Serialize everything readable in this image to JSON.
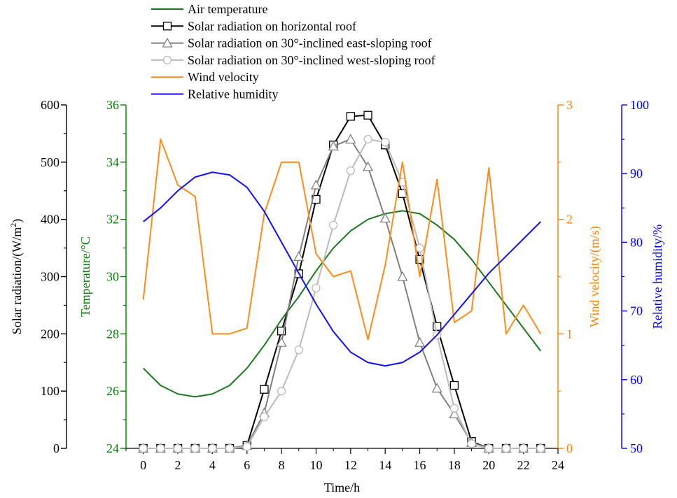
{
  "chart_data": {
    "type": "line",
    "x": [
      0,
      1,
      2,
      3,
      4,
      5,
      6,
      7,
      8,
      9,
      10,
      11,
      12,
      13,
      14,
      15,
      16,
      17,
      18,
      19,
      20,
      21,
      22,
      23
    ],
    "xlabel": "Time/h",
    "xlim": [
      -1,
      24
    ],
    "xticks": [
      0,
      2,
      4,
      6,
      8,
      10,
      12,
      14,
      16,
      18,
      20,
      22,
      24
    ],
    "axes": {
      "solar": {
        "label": "Solar radiation/(W/m",
        "label_sup": "2",
        "label_end": ")",
        "ylim": [
          0,
          600
        ],
        "ticks": [
          0,
          100,
          200,
          300,
          400,
          500,
          600
        ],
        "color": "#000000"
      },
      "temperature": {
        "label": "Temperature/°C",
        "ylim": [
          24,
          36
        ],
        "ticks": [
          24,
          26,
          28,
          30,
          32,
          34,
          36
        ],
        "color": "#008000"
      },
      "wind": {
        "label": "Wind velocity/(m/s)",
        "ylim": [
          0,
          3
        ],
        "ticks": [
          0,
          1,
          2,
          3
        ],
        "color": "#ff8000"
      },
      "humidity": {
        "label": "Relative humidity/%",
        "ylim": [
          50,
          100
        ],
        "ticks": [
          50,
          60,
          70,
          80,
          90,
          100
        ],
        "color": "#0000ff"
      }
    },
    "series": [
      {
        "name": "Air temperature",
        "axis": "temperature",
        "color": "#1a7a1a",
        "marker": "none",
        "values": [
          26.8,
          26.2,
          25.9,
          25.8,
          25.9,
          26.2,
          26.8,
          27.6,
          28.5,
          29.3,
          30.2,
          31.0,
          31.6,
          32.0,
          32.2,
          32.3,
          32.2,
          31.8,
          31.3,
          30.6,
          29.8,
          29.0,
          28.2,
          27.4
        ]
      },
      {
        "name": "Solar radiation on horizontal roof",
        "axis": "solar",
        "color": "#000000",
        "marker": "square",
        "values": [
          0,
          0,
          0,
          0,
          0,
          0,
          5,
          103,
          205,
          305,
          435,
          530,
          580,
          582,
          530,
          445,
          330,
          213,
          110,
          12,
          0,
          0,
          0,
          0
        ]
      },
      {
        "name": "Solar radiation on 30°-inclined east-sloping roof",
        "axis": "solar",
        "color": "#808080",
        "marker": "triangle",
        "values": [
          0,
          0,
          0,
          0,
          0,
          0,
          5,
          62,
          185,
          335,
          460,
          528,
          540,
          492,
          402,
          300,
          185,
          105,
          60,
          10,
          0,
          0,
          0,
          0
        ]
      },
      {
        "name": "Solar radiation on 30°-inclined west-sloping roof",
        "axis": "solar",
        "color": "#bbbbbb",
        "marker": "circle",
        "values": [
          0,
          0,
          0,
          0,
          0,
          0,
          3,
          55,
          100,
          172,
          280,
          390,
          485,
          540,
          535,
          465,
          350,
          198,
          70,
          8,
          0,
          0,
          0,
          0
        ]
      },
      {
        "name": "Wind velocity",
        "axis": "wind",
        "color": "#ff8c1a",
        "marker": "none",
        "values": [
          1.3,
          2.7,
          2.3,
          2.2,
          1.0,
          1.0,
          1.05,
          2.05,
          2.5,
          2.5,
          1.7,
          1.5,
          1.55,
          0.95,
          1.6,
          2.5,
          1.5,
          2.35,
          1.1,
          1.2,
          2.45,
          1.0,
          1.25,
          1.0
        ]
      },
      {
        "name": "Relative humidity",
        "axis": "humidity",
        "color": "#1010ff",
        "marker": "none",
        "values": [
          83,
          85,
          87.5,
          89.5,
          90.2,
          89.8,
          88,
          84.5,
          80,
          75.5,
          71,
          67,
          64,
          62.5,
          62,
          62.5,
          64,
          66.5,
          69.5,
          72.5,
          75.5,
          78,
          80.5,
          83
        ]
      }
    ],
    "legend_position": "top-left",
    "grid": false
  }
}
